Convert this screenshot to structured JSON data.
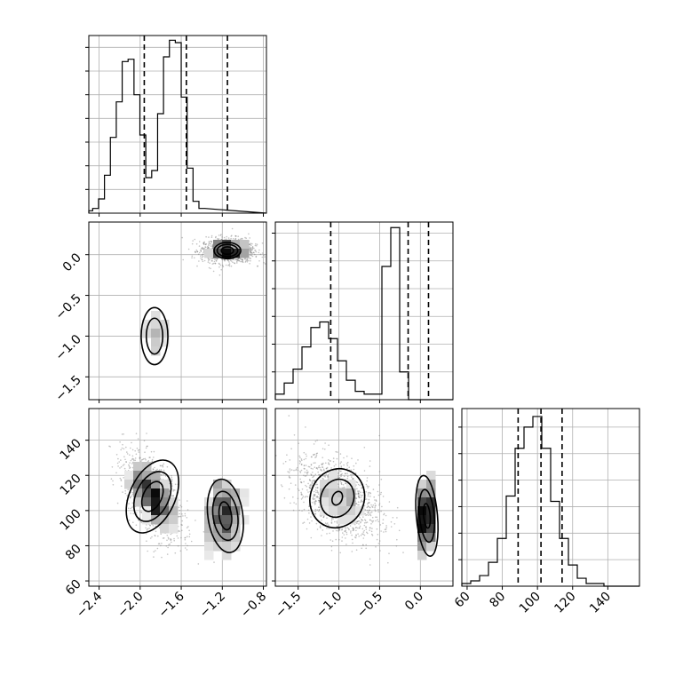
{
  "chart_data": {
    "type": "corner",
    "params": [
      {
        "range": [
          -2.5,
          -0.77
        ],
        "ticks": [
          -2.4,
          -2.0,
          -1.6,
          -1.2,
          -0.8
        ],
        "tick_labels": [
          "−2.4",
          "−2.0",
          "−1.6",
          "−1.2",
          "−0.8"
        ]
      },
      {
        "range": [
          -1.78,
          0.4
        ],
        "ticks": [
          -1.5,
          -1.0,
          -0.5,
          0.0
        ],
        "tick_labels": [
          "−1.5",
          "−1.0",
          "−0.5",
          "0.0"
        ]
      },
      {
        "range": [
          57,
          158
        ],
        "ticks": [
          60,
          80,
          100,
          120,
          140
        ],
        "tick_labels": [
          "60",
          "80",
          "100",
          "120",
          "140"
        ]
      }
    ],
    "histograms": [
      {
        "bin_start": -2.52,
        "bin_width": 0.0575,
        "counts": [
          1,
          2,
          6,
          16,
          32,
          47,
          64,
          65,
          50,
          33,
          15,
          18,
          42,
          66,
          73,
          72,
          49,
          19,
          5,
          2
        ],
        "ymax": 75,
        "quantiles": [
          -1.96,
          -1.55,
          -1.15
        ]
      },
      {
        "bin_start": -1.78,
        "bin_width": 0.109,
        "counts": [
          2,
          6,
          11,
          19,
          26,
          28,
          22,
          14,
          7,
          3,
          2,
          2,
          48,
          62,
          10,
          0,
          0,
          0,
          0,
          0
        ],
        "ymax": 64,
        "quantiles": [
          -1.1,
          -0.15,
          0.1
        ]
      },
      {
        "bin_start": 57,
        "bin_width": 5.05,
        "counts": [
          1,
          2,
          4,
          9,
          18,
          34,
          52,
          60,
          64,
          52,
          32,
          18,
          8,
          3,
          1,
          1,
          0,
          0,
          0,
          0
        ],
        "ymax": 67,
        "quantiles": [
          89,
          102,
          114
        ]
      }
    ],
    "blobs": [
      {
        "row": 1,
        "col": 0,
        "modes": [
          {
            "mx": -1.15,
            "my": 0.05,
            "sx": 0.13,
            "sy": 0.075,
            "rho": 0.0,
            "w": 0.5
          },
          {
            "mx": -1.85,
            "my": -1.0,
            "sx": 0.12,
            "sy": 0.24,
            "rho": 0.0,
            "w": 0.5
          }
        ]
      },
      {
        "row": 2,
        "col": 0,
        "modes": [
          {
            "mx": -1.88,
            "my": 108,
            "sx": 0.14,
            "sy": 12,
            "rho": -0.55,
            "w": 0.5
          },
          {
            "mx": -1.18,
            "my": 97,
            "sx": 0.12,
            "sy": 13,
            "rho": 0.1,
            "w": 0.5
          }
        ]
      },
      {
        "row": 2,
        "col": 1,
        "modes": [
          {
            "mx": -1.0,
            "my": 107,
            "sx": 0.26,
            "sy": 12,
            "rho": -0.45,
            "w": 0.5
          },
          {
            "mx": 0.07,
            "my": 97,
            "sx": 0.065,
            "sy": 13,
            "rho": 0.2,
            "w": 0.5
          }
        ]
      }
    ],
    "contours": [
      {
        "row": 1,
        "col": 0,
        "mx": -1.15,
        "my": 0.05,
        "rx": [
          0.06,
          0.1,
          0.13
        ],
        "ry": [
          0.045,
          0.075,
          0.1
        ],
        "rot": 0
      },
      {
        "row": 1,
        "col": 0,
        "mx": -1.86,
        "my": -1.0,
        "rx": [
          0.08,
          0.13
        ],
        "ry": [
          0.22,
          0.35
        ],
        "rot": 0
      },
      {
        "row": 2,
        "col": 0,
        "mx": -1.88,
        "my": 108,
        "rx": [
          0.09,
          0.16,
          0.22
        ],
        "ry": [
          9,
          15,
          22
        ],
        "rot": 25
      },
      {
        "row": 2,
        "col": 0,
        "mx": -1.17,
        "my": 97,
        "rx": [
          0.06,
          0.12,
          0.17
        ],
        "ry": [
          8,
          14,
          21
        ],
        "rot": -8
      },
      {
        "row": 2,
        "col": 1,
        "mx": -1.02,
        "my": 107,
        "rx": [
          0.06,
          0.2,
          0.33
        ],
        "ry": [
          4,
          11,
          17
        ],
        "rot": 22
      },
      {
        "row": 2,
        "col": 1,
        "mx": 0.08,
        "my": 97,
        "rx": [
          0.04,
          0.09,
          0.13
        ],
        "ry": [
          7,
          15,
          23
        ],
        "rot": -5
      }
    ]
  }
}
